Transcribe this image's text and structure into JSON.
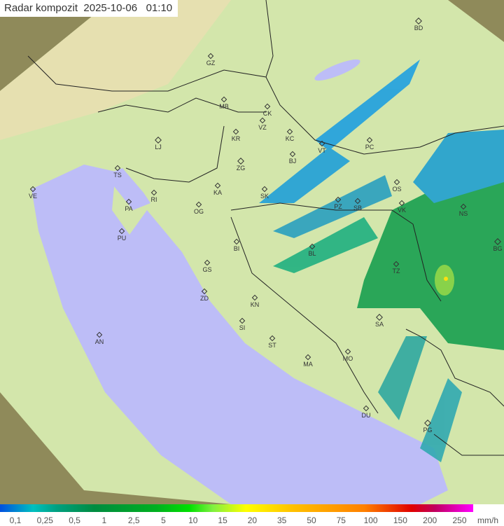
{
  "title": "Radar kompozit  2025-10-06   01:10",
  "legend": {
    "unit": "mm/h",
    "ticks": [
      "0,1",
      "0,25",
      "0,5",
      "1",
      "2,5",
      "5",
      "10",
      "15",
      "20",
      "35",
      "50",
      "75",
      "100",
      "150",
      "200",
      "250"
    ]
  },
  "colors": {
    "land": "#d3e6ab",
    "sea": "#bdbdf7",
    "outside": "#8f8a5a",
    "rain_light": "#1fa0e0",
    "rain_med": "#20b060",
    "rain_heavy": "#10a040"
  },
  "cities": [
    {
      "code": "BD",
      "capital": true
    },
    {
      "code": "GZ"
    },
    {
      "code": "MB"
    },
    {
      "code": "CK"
    },
    {
      "code": "VZ"
    },
    {
      "code": "KR"
    },
    {
      "code": "KC"
    },
    {
      "code": "LJ",
      "capital": true
    },
    {
      "code": "ZG",
      "capital": true
    },
    {
      "code": "BJ"
    },
    {
      "code": "VT"
    },
    {
      "code": "PC"
    },
    {
      "code": "TS"
    },
    {
      "code": "VE"
    },
    {
      "code": "RI"
    },
    {
      "code": "KA"
    },
    {
      "code": "SK"
    },
    {
      "code": "OS"
    },
    {
      "code": "PA"
    },
    {
      "code": "OG"
    },
    {
      "code": "PZ"
    },
    {
      "code": "SB"
    },
    {
      "code": "VK"
    },
    {
      "code": "NS"
    },
    {
      "code": "PU"
    },
    {
      "code": "BI"
    },
    {
      "code": "BL"
    },
    {
      "code": "BG",
      "capital": true
    },
    {
      "code": "GS"
    },
    {
      "code": "TZ"
    },
    {
      "code": "ZD"
    },
    {
      "code": "KN"
    },
    {
      "code": "SA",
      "capital": true
    },
    {
      "code": "SI"
    },
    {
      "code": "AN"
    },
    {
      "code": "ST"
    },
    {
      "code": "MO"
    },
    {
      "code": "MA"
    },
    {
      "code": "DU"
    },
    {
      "code": "PG",
      "capital": true
    }
  ]
}
